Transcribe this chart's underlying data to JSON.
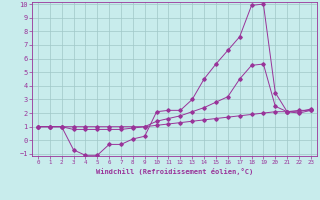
{
  "xlabel": "Windchill (Refroidissement éolien,°C)",
  "bg_color": "#c8ecec",
  "grid_color": "#a0c8c8",
  "line_color": "#993399",
  "xmin": 0,
  "xmax": 23,
  "ymin": -1,
  "ymax": 10,
  "line1": [
    1.0,
    1.0,
    1.0,
    -0.7,
    -1.1,
    -1.1,
    -0.3,
    -0.3,
    0.1,
    0.3,
    2.1,
    2.2,
    2.2,
    3.0,
    4.5,
    5.6,
    6.6,
    7.6,
    9.9,
    10.0,
    3.5,
    2.1,
    2.0,
    2.2
  ],
  "line2": [
    1.0,
    1.0,
    1.0,
    0.8,
    0.8,
    0.8,
    0.8,
    0.8,
    0.9,
    1.0,
    1.4,
    1.6,
    1.8,
    2.1,
    2.4,
    2.8,
    3.2,
    4.5,
    5.5,
    5.6,
    2.5,
    2.1,
    2.1,
    2.3
  ],
  "line3": [
    1.0,
    1.0,
    1.0,
    1.0,
    1.0,
    1.0,
    1.0,
    1.0,
    1.0,
    1.0,
    1.1,
    1.2,
    1.3,
    1.4,
    1.5,
    1.6,
    1.7,
    1.8,
    1.9,
    2.0,
    2.1,
    2.1,
    2.2,
    2.2
  ]
}
